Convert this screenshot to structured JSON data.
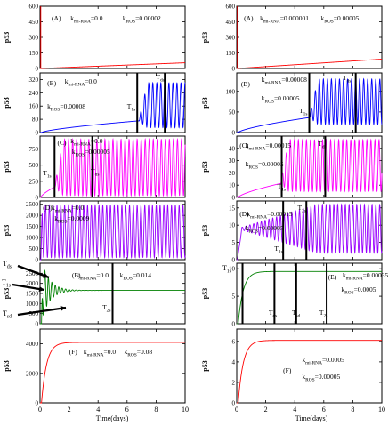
{
  "figure": {
    "y_axis_label": "p53",
    "x_axis_label": "Time(days)",
    "x_ticks": [
      "0",
      "2",
      "4",
      "6",
      "8",
      "10"
    ]
  },
  "chart_data": [
    {
      "id": "L1",
      "type": "line",
      "letter": "(A)",
      "annotations": [
        {
          "text": "k",
          "sub": "mi-RNA",
          "rest": "=0.0"
        },
        {
          "text": "k",
          "sub": "ROS",
          "rest": "=0.00002"
        }
      ],
      "y_ticks": [
        "0",
        "150",
        "300",
        "450",
        "600"
      ],
      "ylim": [
        0,
        600
      ],
      "series": [
        {
          "color": "#ff0000",
          "shape": "rise",
          "x_start": 0.05,
          "y_plateau": 55,
          "spike_to": 600
        }
      ]
    },
    {
      "id": "L2",
      "type": "line",
      "letter": "(B)",
      "annotations": [
        {
          "text": "k",
          "sub": "mi-RNA",
          "rest": "=0.0"
        },
        {
          "text": "k",
          "sub": "ROS",
          "rest": "=0.00008"
        }
      ],
      "marks": [
        "T1s",
        "Tds"
      ],
      "y_ticks": [
        "0",
        "80",
        "160",
        "240",
        "320"
      ],
      "ylim": [
        0,
        360
      ],
      "series": [
        {
          "color": "#0000ff",
          "shape": "ramp-osc",
          "x_start": 0.1,
          "osc_from": 6.8,
          "osc_min": 30,
          "osc_max": 300
        }
      ]
    },
    {
      "id": "L3",
      "type": "line",
      "letter": "(C)",
      "annotations": [
        {
          "text": "k",
          "sub": "mi-RNA",
          "rest": "=0.0"
        },
        {
          "text": "k",
          "sub": "ROS",
          "rest": "=0.00005"
        }
      ],
      "marks": [
        "T1s",
        "Tds"
      ],
      "y_ticks": [
        "0",
        "250",
        "500",
        "750"
      ],
      "ylim": [
        0,
        950
      ],
      "series": [
        {
          "color": "#ff00ff",
          "shape": "ramp-osc",
          "x_start": 0.05,
          "osc_from": 1.0,
          "osc_min": 30,
          "osc_max": 900
        }
      ]
    },
    {
      "id": "L4",
      "type": "line",
      "letter": "(D)",
      "annotations": [
        {
          "text": "k",
          "sub": "mi-RNA",
          "rest": "=0.0"
        },
        {
          "text": "k",
          "sub": "ROS",
          "rest": "=0.0009"
        }
      ],
      "y_ticks": [
        "0",
        "500",
        "1000",
        "1500",
        "2000",
        "2500"
      ],
      "ylim": [
        0,
        2650
      ],
      "series": [
        {
          "color": "#9900ff",
          "shape": "osc",
          "x_start": 0.05,
          "osc_min": 100,
          "osc_max": 2450
        }
      ]
    },
    {
      "id": "L5",
      "type": "line",
      "letter": "(E)",
      "annotations": [
        {
          "text": "k",
          "sub": "mi-RNA",
          "rest": "=0.0"
        },
        {
          "text": "k",
          "sub": "ROS",
          "rest": "=0.014"
        }
      ],
      "marks": [
        "T2s"
      ],
      "side_labels": [
        "Tds",
        "T1s",
        "Tsd"
      ],
      "y_ticks": [
        "0",
        "500",
        "1000",
        "1500",
        "2000",
        "2500"
      ],
      "ylim": [
        0,
        3000
      ],
      "series": [
        {
          "color": "#008000",
          "shape": "damped",
          "x_start": 0.1,
          "y_plateau": 1650,
          "amp": 1500
        }
      ]
    },
    {
      "id": "L6",
      "type": "line",
      "letter": "(F)",
      "annotations": [
        {
          "text": "k",
          "sub": "mi-RNA",
          "rest": "=0.0"
        },
        {
          "text": "k",
          "sub": "ROS",
          "rest": "=0.08"
        }
      ],
      "y_ticks": [
        "0",
        "2000",
        "4000"
      ],
      "ylim": [
        0,
        5000
      ],
      "series": [
        {
          "color": "#ff0000",
          "shape": "saturate",
          "x_start": 0.1,
          "y_plateau": 4100
        }
      ]
    },
    {
      "id": "R1",
      "type": "line",
      "letter": "(A)",
      "annotations": [
        {
          "text": "k",
          "sub": "mi-RNA",
          "rest": "=0.000001"
        },
        {
          "text": "k",
          "sub": "ROS",
          "rest": "=0.00005"
        }
      ],
      "y_ticks": [
        "0",
        "150",
        "300",
        "450",
        "600"
      ],
      "ylim": [
        0,
        600
      ],
      "series": [
        {
          "color": "#ff0000",
          "shape": "rise",
          "x_start": 0.05,
          "y_plateau": 90,
          "spike_to": 600
        }
      ]
    },
    {
      "id": "R2",
      "type": "line",
      "letter": "(B)",
      "annotations": [
        {
          "text": "k",
          "sub": "mi-RNA",
          "rest": "=0.00008"
        },
        {
          "text": "k",
          "sub": "ROS",
          "rest": "=0.00005"
        }
      ],
      "marks": [
        "T1s",
        "Tds"
      ],
      "y_ticks": [
        "0",
        "50",
        "100"
      ],
      "ylim": [
        0,
        145
      ],
      "series": [
        {
          "color": "#0000ff",
          "shape": "ramp-osc",
          "x_start": 0.1,
          "osc_from": 5.0,
          "osc_min": 20,
          "osc_max": 130
        }
      ]
    },
    {
      "id": "R3",
      "type": "line",
      "letter": "(C)",
      "annotations": [
        {
          "text": "k",
          "sub": "mi-RNA",
          "rest": "=0.00015"
        },
        {
          "text": "k",
          "sub": "ROS",
          "rest": "=0.00005"
        }
      ],
      "marks": [
        "T1s",
        "Tds"
      ],
      "y_ticks": [
        "0",
        "10",
        "20",
        "30",
        "40"
      ],
      "ylim": [
        0,
        50
      ],
      "series": [
        {
          "color": "#ff00ff",
          "shape": "ramp-osc",
          "x_start": 0.1,
          "osc_from": 3.0,
          "osc_min": 5,
          "osc_max": 47
        }
      ]
    },
    {
      "id": "R4",
      "type": "line",
      "letter": "(D)",
      "annotations": [
        {
          "text": "k",
          "sub": "mi-RNA",
          "rest": "=0.00015"
        },
        {
          "text": "k",
          "sub": "ROS",
          "rest": "=0.00005"
        }
      ],
      "marks": [
        "T1s",
        "T2s"
      ],
      "y_ticks": [
        "0",
        "5",
        "10",
        "15"
      ],
      "ylim": [
        0,
        17
      ],
      "series": [
        {
          "color": "#9900ff",
          "shape": "grow-osc",
          "x_start": 0.05,
          "y_center": 9,
          "amp_max": 7
        }
      ]
    },
    {
      "id": "R5",
      "type": "line",
      "letter": "(E)",
      "annotations": [
        {
          "text": "k",
          "sub": "mi-RNA",
          "rest": "=0.00035"
        },
        {
          "text": "k",
          "sub": "ROS",
          "rest": "=0.0005"
        }
      ],
      "marks": [
        "Tds",
        "Tsd",
        "T2s"
      ],
      "side_labels": [
        "T1s"
      ],
      "y_ticks": [
        "0",
        "5",
        "10"
      ],
      "ylim": [
        0,
        11
      ],
      "series": [
        {
          "color": "#008000",
          "shape": "saturate",
          "x_start": 0.1,
          "y_plateau": 9.5
        }
      ]
    },
    {
      "id": "R6",
      "type": "line",
      "letter": "(F)",
      "annotations": [
        {
          "text": "k",
          "sub": "mi-RNA",
          "rest": "=0.0005"
        },
        {
          "text": "k",
          "sub": "ROS",
          "rest": "=0.00005"
        }
      ],
      "y_ticks": [
        "0",
        "2",
        "4",
        "6"
      ],
      "ylim": [
        0,
        7.2
      ],
      "series": [
        {
          "color": "#ff0000",
          "shape": "saturate",
          "x_start": 0.1,
          "y_plateau": 6.1
        }
      ]
    }
  ]
}
